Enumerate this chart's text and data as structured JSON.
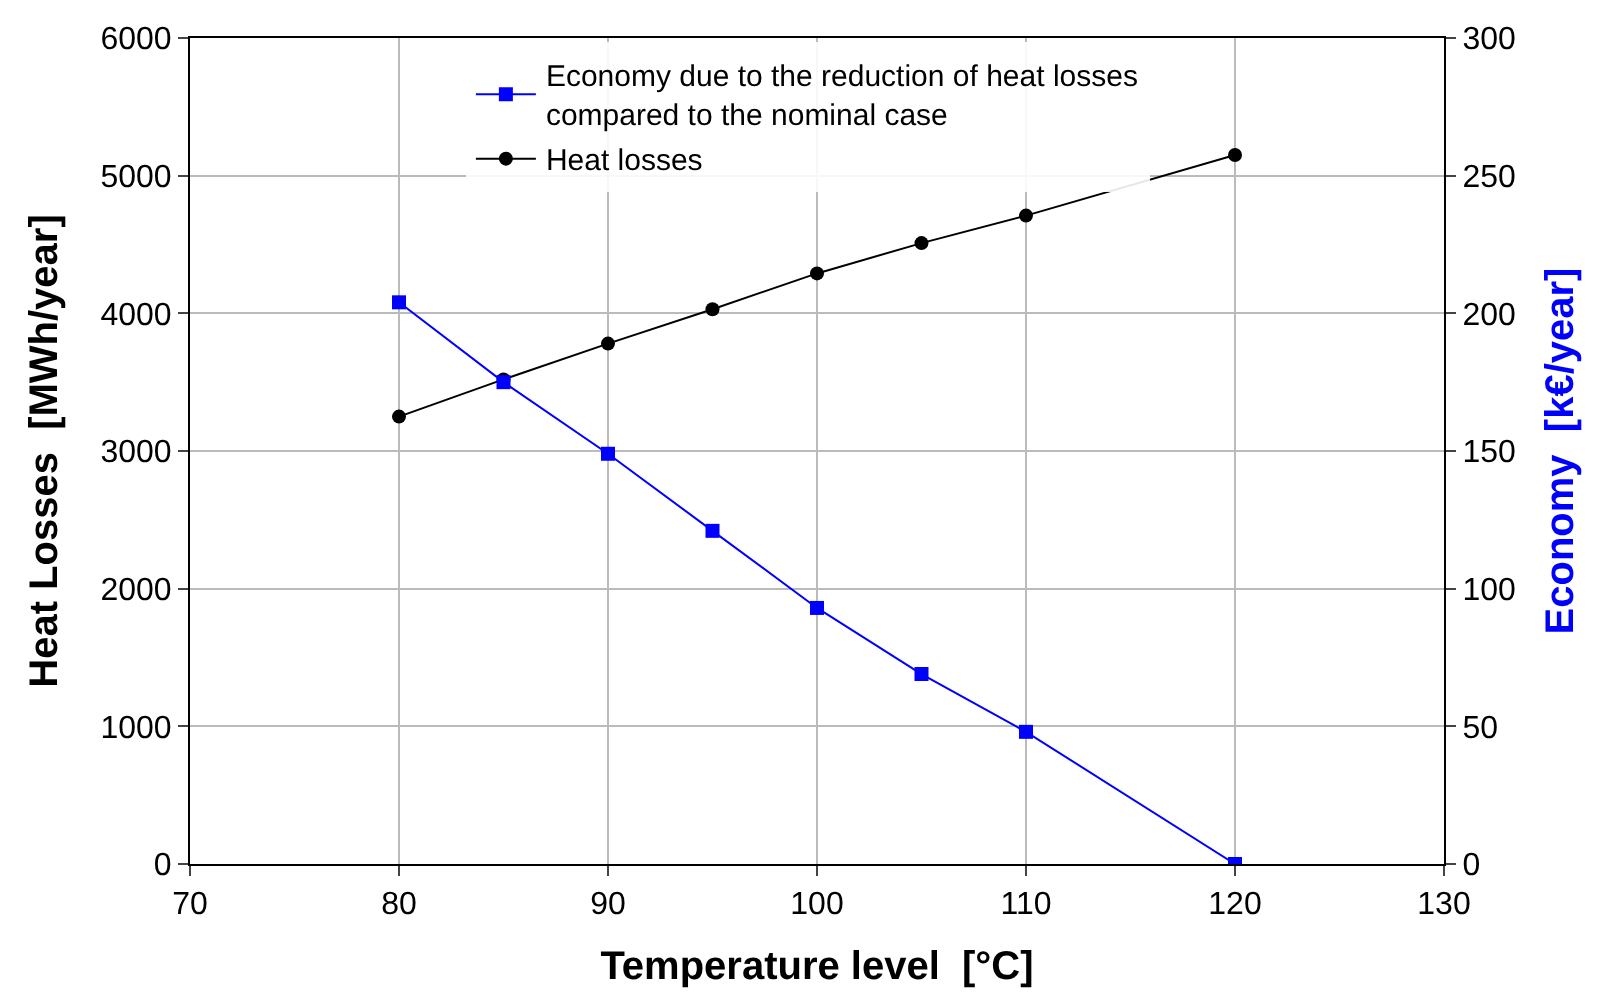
{
  "chart_data": {
    "type": "line",
    "xlabel": "Temperature level  [°C]",
    "ylabel": "Heat Losses  [MWh/year]",
    "y2label": "Economy  [k€/year]",
    "x": [
      80,
      85,
      90,
      95,
      100,
      105,
      110,
      120
    ],
    "series": [
      {
        "name": "Economy due to the reduction of heat losses\ncompared to the nominal case",
        "color": "#0000ff",
        "axis": "y2",
        "marker": "square",
        "values": [
          204,
          175,
          149,
          121,
          93,
          69,
          48,
          0
        ]
      },
      {
        "name": "Heat losses",
        "color": "#000000",
        "marker": "circle",
        "values": [
          3250,
          3520,
          3780,
          4030,
          4290,
          4510,
          4710,
          5150
        ]
      }
    ],
    "xlim": [
      70,
      130
    ],
    "xticks": [
      70,
      80,
      90,
      100,
      110,
      120,
      130
    ],
    "ylim": [
      0,
      6000
    ],
    "yticks": [
      0,
      1000,
      2000,
      3000,
      4000,
      5000,
      6000
    ],
    "y2lim": [
      0,
      300
    ],
    "y2ticks": [
      0,
      50,
      100,
      150,
      200,
      250,
      300
    ],
    "grid": true,
    "legend": "top",
    "line_style": "solid"
  }
}
